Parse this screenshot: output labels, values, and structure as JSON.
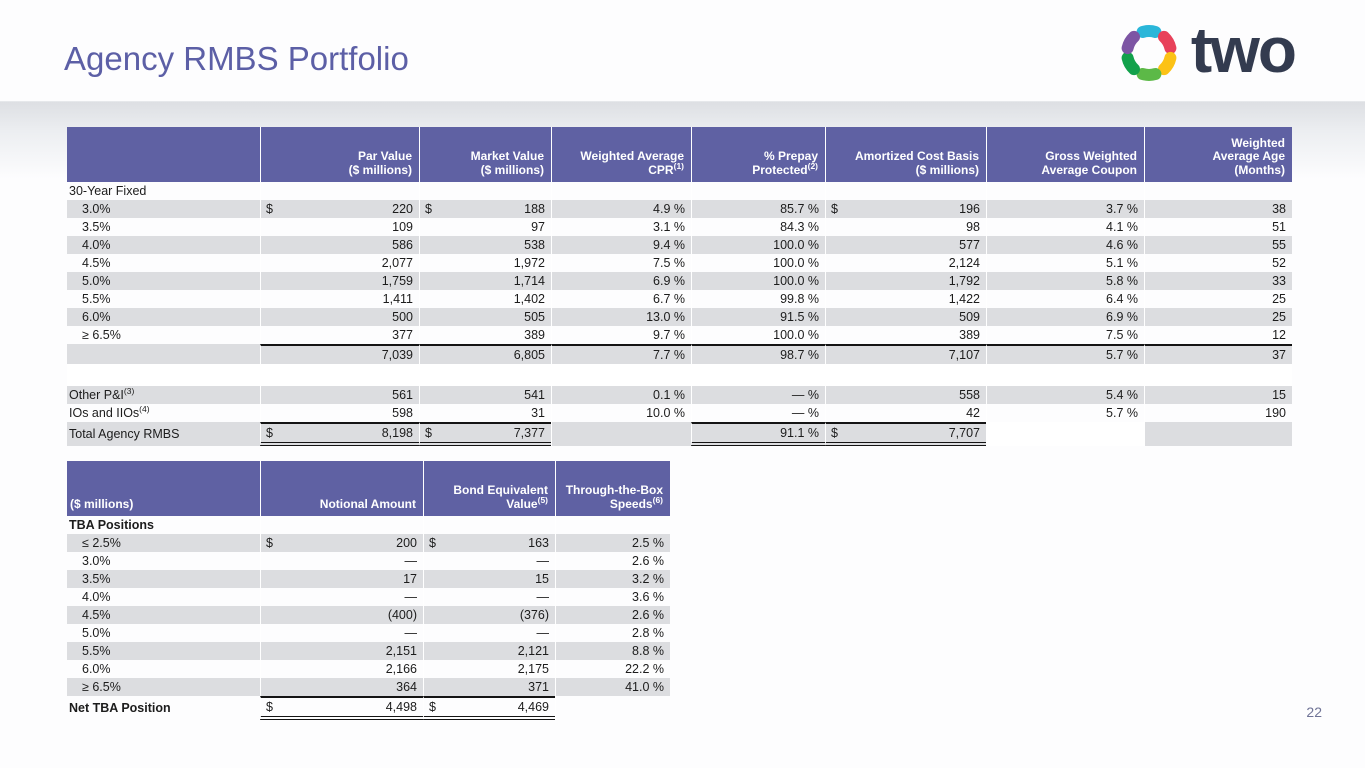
{
  "slide": {
    "title": "Agency RMBS Portfolio",
    "logo_text": "two",
    "page_number": "22",
    "colors": {
      "header_purple": "#5f61a3",
      "stripe_gray": "#dcdde0",
      "title_purple": "#5c5fa6",
      "logo_navy": "#333b4f"
    }
  },
  "logo_icon_colors": [
    "#2ab6d9",
    "#e8415a",
    "#fcc216",
    "#5cb947",
    "#12a14b",
    "#7d55a4"
  ],
  "tables": [
    {
      "target": "t1",
      "name": "agency-rmbs-portfolio-table",
      "columns": [
        {
          "lines": [
            ""
          ]
        },
        {
          "lines": [
            "Par Value",
            "($ millions)"
          ]
        },
        {
          "lines": [
            "Market Value",
            "($ millions)"
          ]
        },
        {
          "lines": [
            "Weighted Average",
            "CPR"
          ],
          "sup": "(1)"
        },
        {
          "lines": [
            "% Prepay",
            "Protected"
          ],
          "sup": "(2)"
        },
        {
          "lines": [
            "Amortized Cost Basis",
            "($ millions)"
          ]
        },
        {
          "lines": [
            "Gross Weighted",
            "Average Coupon"
          ]
        },
        {
          "lines": [
            "Weighted",
            "Average Age",
            "(Months)"
          ]
        }
      ],
      "rows": [
        {
          "kind": "section",
          "label": "30-Year Fixed",
          "cells": [
            "",
            "",
            "",
            "",
            "",
            "",
            ""
          ]
        },
        {
          "kind": "data",
          "shade": true,
          "indent": true,
          "label": "3.0%",
          "cells": [
            {
              "d": "$",
              "v": "220"
            },
            {
              "d": "$",
              "v": "188"
            },
            "4.9 %",
            "85.7 %",
            {
              "d": "$",
              "v": "196"
            },
            "3.7 %",
            "38"
          ]
        },
        {
          "kind": "data",
          "indent": true,
          "label": "3.5%",
          "cells": [
            "109",
            "97",
            "3.1 %",
            "84.3 %",
            "98",
            "4.1 %",
            "51"
          ]
        },
        {
          "kind": "data",
          "shade": true,
          "indent": true,
          "label": "4.0%",
          "cells": [
            "586",
            "538",
            "9.4 %",
            "100.0 %",
            "577",
            "4.6 %",
            "55"
          ]
        },
        {
          "kind": "data",
          "indent": true,
          "label": "4.5%",
          "cells": [
            "2,077",
            "1,972",
            "7.5 %",
            "100.0 %",
            "2,124",
            "5.1 %",
            "52"
          ]
        },
        {
          "kind": "data",
          "shade": true,
          "indent": true,
          "label": "5.0%",
          "cells": [
            "1,759",
            "1,714",
            "6.9 %",
            "100.0 %",
            "1,792",
            "5.8 %",
            "33"
          ]
        },
        {
          "kind": "data",
          "indent": true,
          "label": "5.5%",
          "cells": [
            "1,411",
            "1,402",
            "6.7 %",
            "99.8 %",
            "1,422",
            "6.4 %",
            "25"
          ]
        },
        {
          "kind": "data",
          "shade": true,
          "indent": true,
          "label": "6.0%",
          "cells": [
            "500",
            "505",
            "13.0 %",
            "91.5 %",
            "509",
            "6.9 %",
            "25"
          ]
        },
        {
          "kind": "data",
          "indent": true,
          "label": "≥ 6.5%",
          "cells": [
            "377",
            "389",
            "9.7 %",
            "100.0 %",
            "389",
            "7.5 %",
            "12"
          ]
        },
        {
          "kind": "subtotal",
          "shade": true,
          "label": "",
          "cells": [
            "7,039",
            "6,805",
            "7.7 %",
            "98.7 %",
            "7,107",
            "5.7 %",
            "37"
          ]
        },
        {
          "kind": "spacer",
          "label": "",
          "cells": [
            "",
            "",
            "",
            "",
            "",
            "",
            ""
          ]
        },
        {
          "kind": "data",
          "shade": true,
          "label": "Other P&I",
          "sup": "(3)",
          "cells": [
            "561",
            "541",
            "0.1 %",
            "— %",
            "558",
            "5.4 %",
            "15"
          ]
        },
        {
          "kind": "data",
          "label": "IOs and IIOs",
          "sup": "(4)",
          "cells": [
            "598",
            "31",
            "10.0 %",
            "— %",
            "42",
            "5.7 %",
            "190"
          ]
        },
        {
          "kind": "total",
          "shade": true,
          "label": "Total Agency RMBS",
          "cells": [
            {
              "d": "$",
              "v": "8,198"
            },
            {
              "d": "$",
              "v": "7,377"
            },
            "",
            "91.1 %",
            {
              "d": "$",
              "v": "7,707"
            },
            "",
            ""
          ]
        }
      ]
    },
    {
      "target": "t2",
      "name": "tba-positions-table",
      "columns": [
        {
          "lines": [
            "($ millions)"
          ]
        },
        {
          "lines": [
            "Notional Amount"
          ]
        },
        {
          "lines": [
            "Bond Equivalent",
            "Value"
          ],
          "sup": "(5)"
        },
        {
          "lines": [
            "Through-the-Box",
            "Speeds"
          ],
          "sup": "(6)"
        }
      ],
      "rows": [
        {
          "kind": "section",
          "bold": true,
          "label": "TBA Positions",
          "cells": [
            "",
            "",
            ""
          ]
        },
        {
          "kind": "data",
          "shade": true,
          "indent": true,
          "label": "≤ 2.5%",
          "cells": [
            {
              "d": "$",
              "v": "200"
            },
            {
              "d": "$",
              "v": "163"
            },
            "2.5 %"
          ]
        },
        {
          "kind": "data",
          "indent": true,
          "label": "3.0%",
          "cells": [
            "—",
            "—",
            "2.6 %"
          ]
        },
        {
          "kind": "data",
          "shade": true,
          "indent": true,
          "label": "3.5%",
          "cells": [
            "17",
            "15",
            "3.2 %"
          ]
        },
        {
          "kind": "data",
          "indent": true,
          "label": "4.0%",
          "cells": [
            "—",
            "—",
            "3.6 %"
          ]
        },
        {
          "kind": "data",
          "shade": true,
          "indent": true,
          "label": "4.5%",
          "cells": [
            "(400)",
            "(376)",
            "2.6 %"
          ]
        },
        {
          "kind": "data",
          "indent": true,
          "label": "5.0%",
          "cells": [
            "—",
            "—",
            "2.8 %"
          ]
        },
        {
          "kind": "data",
          "shade": true,
          "indent": true,
          "label": "5.5%",
          "cells": [
            "2,151",
            "2,121",
            "8.8 %"
          ]
        },
        {
          "kind": "data",
          "indent": true,
          "label": "6.0%",
          "cells": [
            "2,166",
            "2,175",
            "22.2 %"
          ]
        },
        {
          "kind": "data",
          "shade": true,
          "indent": true,
          "label": "≥ 6.5%",
          "cells": [
            "364",
            "371",
            "41.0 %"
          ]
        },
        {
          "kind": "total",
          "bold": true,
          "label": "Net TBA Position",
          "cells": [
            {
              "d": "$",
              "v": "4,498"
            },
            {
              "d": "$",
              "v": "4,469"
            },
            ""
          ]
        }
      ]
    }
  ]
}
